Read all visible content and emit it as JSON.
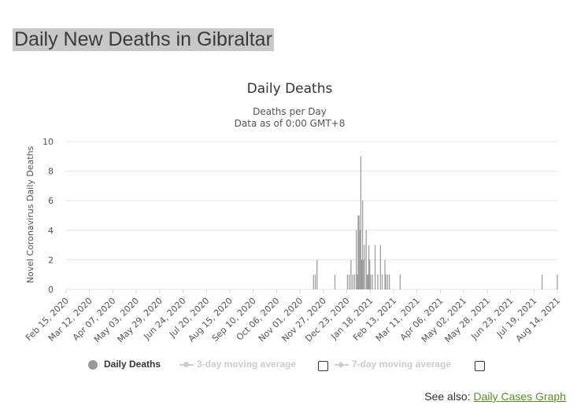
{
  "page": {
    "heading": "Daily New Deaths in Gibraltar"
  },
  "legend": {
    "daily_deaths": "Daily Deaths",
    "ma3": "3-day moving average",
    "ma7": "7-day moving average"
  },
  "footer": {
    "see_also": "See also:",
    "link": "Daily Cases Graph"
  },
  "colors": {
    "bar": "#999999",
    "grid": "#e6e6e6",
    "link": "#5a8f28"
  },
  "chart_data": {
    "type": "bar",
    "title": "Daily Deaths",
    "subtitle_lines": [
      "Deaths per Day",
      "Data as of 0:00 GMT+8"
    ],
    "xlabel": "",
    "ylabel": "Novel Coronavirus Daily Deaths",
    "ylim": [
      0,
      10
    ],
    "yticks": [
      0,
      2,
      4,
      6,
      8,
      10
    ],
    "xlim": [
      "2020-02-15",
      "2021-08-18"
    ],
    "xtick_labels": [
      "Feb 15, 2020",
      "Mar 12, 2020",
      "Apr 07, 2020",
      "May 03, 2020",
      "May 29, 2020",
      "Jun 24, 2020",
      "Jul 20, 2020",
      "Aug 15, 2020",
      "Sep 10, 2020",
      "Oct 06, 2020",
      "Nov 01, 2020",
      "Nov 27, 2020",
      "Dec 23, 2020",
      "Jan 18, 2021",
      "Feb 13, 2021",
      "Mar 11, 2021",
      "Apr 06, 2021",
      "May 02, 2021",
      "May 28, 2021",
      "Jun 23, 2021",
      "Jul 19, 2021",
      "Aug 14, 2021"
    ],
    "grid": true,
    "series": [
      {
        "name": "Daily Deaths",
        "points": [
          [
            "2020-11-18",
            1
          ],
          [
            "2020-11-20",
            1
          ],
          [
            "2020-11-22",
            2
          ],
          [
            "2020-12-12",
            1
          ],
          [
            "2020-12-26",
            1
          ],
          [
            "2020-12-28",
            1
          ],
          [
            "2020-12-30",
            2
          ],
          [
            "2021-01-01",
            1
          ],
          [
            "2021-01-03",
            1
          ],
          [
            "2021-01-05",
            4
          ],
          [
            "2021-01-06",
            1
          ],
          [
            "2021-01-07",
            5
          ],
          [
            "2021-01-08",
            5
          ],
          [
            "2021-01-09",
            4
          ],
          [
            "2021-01-10",
            9
          ],
          [
            "2021-01-11",
            2
          ],
          [
            "2021-01-12",
            6
          ],
          [
            "2021-01-13",
            2
          ],
          [
            "2021-01-14",
            3
          ],
          [
            "2021-01-16",
            4
          ],
          [
            "2021-01-17",
            1
          ],
          [
            "2021-01-18",
            1
          ],
          [
            "2021-01-19",
            3
          ],
          [
            "2021-01-20",
            2
          ],
          [
            "2021-01-21",
            1
          ],
          [
            "2021-01-23",
            1
          ],
          [
            "2021-01-26",
            3
          ],
          [
            "2021-01-29",
            1
          ],
          [
            "2021-02-01",
            3
          ],
          [
            "2021-02-03",
            1
          ],
          [
            "2021-02-06",
            2
          ],
          [
            "2021-02-07",
            1
          ],
          [
            "2021-02-09",
            1
          ],
          [
            "2021-02-11",
            1
          ],
          [
            "2021-02-23",
            1
          ],
          [
            "2021-08-01",
            1
          ],
          [
            "2021-08-18",
            1
          ]
        ]
      }
    ]
  }
}
